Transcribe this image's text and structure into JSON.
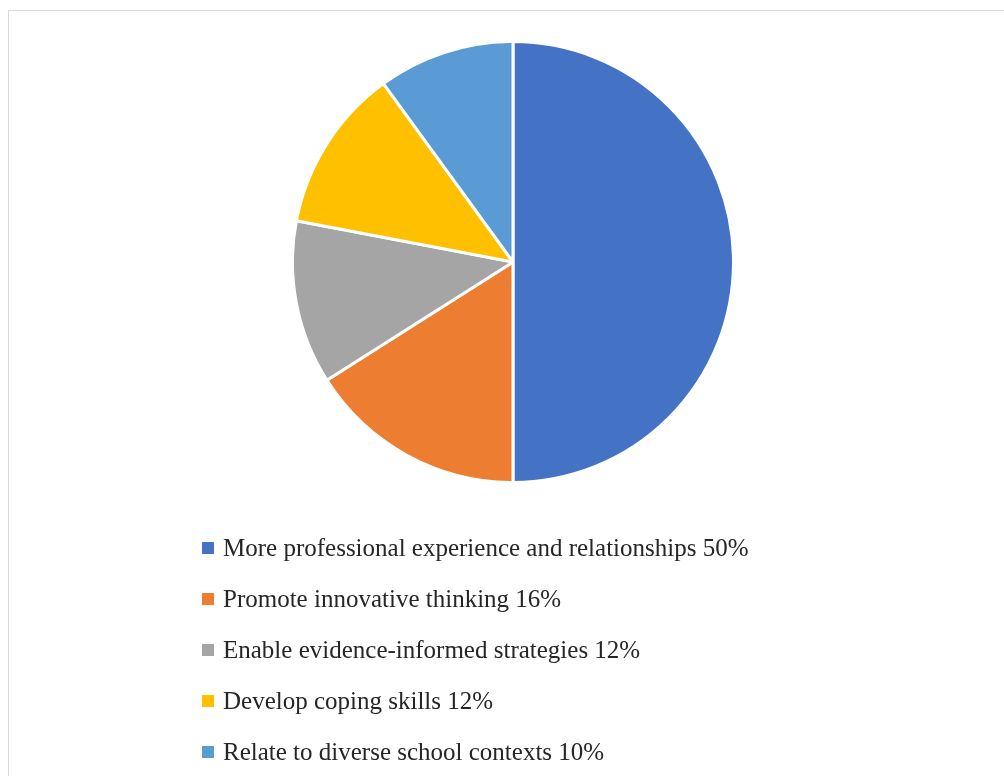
{
  "chart_data": {
    "type": "pie",
    "categories": [
      "More professional experience and relationships 50%",
      "Promote innovative thinking 16%",
      "Enable evidence-informed strategies 12%",
      "Develop coping skills 12%",
      "Relate to diverse school contexts 10%"
    ],
    "values": [
      50,
      16,
      12,
      12,
      10
    ],
    "colors": [
      "#4472c4",
      "#ed7d31",
      "#a5a5a5",
      "#ffc000",
      "#5b9bd5"
    ],
    "legend": "bottom"
  }
}
